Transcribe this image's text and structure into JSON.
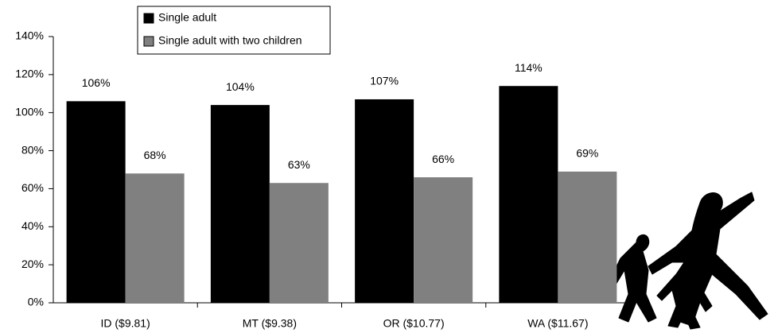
{
  "chart_data": {
    "type": "bar",
    "categories": [
      "ID ($9.81)",
      "MT ($9.38)",
      "OR ($10.77)",
      "WA ($11.67)"
    ],
    "series": [
      {
        "name": "Single adult",
        "color": "#000000",
        "values": [
          106,
          104,
          107,
          114
        ],
        "value_labels": [
          "106%",
          "104%",
          "107%",
          "114%"
        ]
      },
      {
        "name": "Single adult with two children",
        "color": "#808080",
        "values": [
          68,
          63,
          66,
          69
        ],
        "value_labels": [
          "68%",
          "63%",
          "66%",
          "69%"
        ]
      }
    ],
    "ylim": [
      0,
      140
    ],
    "yticks": [
      {
        "value": 0,
        "label": "0%"
      },
      {
        "value": 20,
        "label": "20%"
      },
      {
        "value": 40,
        "label": "40%"
      },
      {
        "value": 60,
        "label": "60%"
      },
      {
        "value": 80,
        "label": "80%"
      },
      {
        "value": 100,
        "label": "100%"
      },
      {
        "value": 120,
        "label": "120%"
      },
      {
        "value": 140,
        "label": "140%"
      }
    ],
    "grid": false,
    "legend": "top"
  }
}
